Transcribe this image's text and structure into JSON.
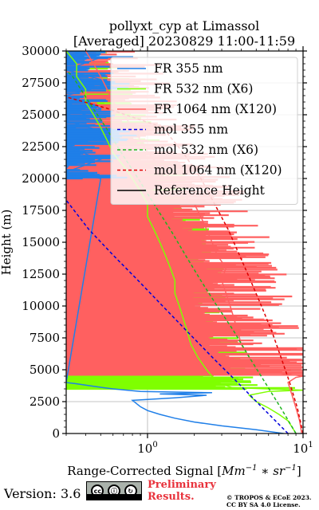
{
  "chart_data": {
    "type": "line",
    "title": "pollyxt_cyp at Limassol",
    "subtitle": "[Averaged] 20230829 11:00-11:59",
    "xlabel": "Range-Corrected Signal [Mm^{-1}*sr^{-1}]",
    "xlabel_text": "Range-Corrected Signal [",
    "xlabel_math": "Mm",
    "xlabel_close": "]",
    "ylabel": "Height (m)",
    "xscale": "log",
    "xlim": [
      0.3,
      10
    ],
    "ylim": [
      0,
      30000
    ],
    "x_ticks": [
      {
        "value": 1,
        "label": "10",
        "exp": "0"
      },
      {
        "value": 10,
        "label": "10",
        "exp": "1"
      }
    ],
    "y_ticks": [
      {
        "value": 0,
        "label": "0"
      },
      {
        "value": 2500,
        "label": "2500"
      },
      {
        "value": 5000,
        "label": "5000"
      },
      {
        "value": 7500,
        "label": "7500"
      },
      {
        "value": 10000,
        "label": "10000"
      },
      {
        "value": 12500,
        "label": "12500"
      },
      {
        "value": 15000,
        "label": "15000"
      },
      {
        "value": 17500,
        "label": "17500"
      },
      {
        "value": 20000,
        "label": "20000"
      },
      {
        "value": 22500,
        "label": "22500"
      },
      {
        "value": 25000,
        "label": "25000"
      },
      {
        "value": 27500,
        "label": "27500"
      },
      {
        "value": 30000,
        "label": "30000"
      }
    ],
    "grid": true,
    "legend_position": "upper-right",
    "series": [
      {
        "name": "FR 355 nm",
        "color": "#1f7fe8",
        "style": "solid",
        "points": [
          [
            7.5,
            0
          ],
          [
            5.0,
            300
          ],
          [
            3.0,
            600
          ],
          [
            2.0,
            900
          ],
          [
            1.5,
            1200
          ],
          [
            1.2,
            1500
          ],
          [
            1.0,
            1800
          ],
          [
            0.9,
            2100
          ],
          [
            0.8,
            2600
          ],
          [
            1.5,
            2800
          ],
          [
            2.4,
            3000
          ],
          [
            1.2,
            3100
          ],
          [
            2.6,
            3200
          ],
          [
            0.9,
            3300
          ],
          [
            0.6,
            3500
          ],
          [
            0.45,
            3700
          ],
          [
            0.35,
            3900
          ],
          [
            0.3,
            4000
          ],
          [
            0.5,
            20000
          ],
          [
            0.3,
            20500
          ],
          [
            0.5,
            21500
          ],
          [
            0.3,
            22500
          ],
          [
            0.6,
            23500
          ],
          [
            0.3,
            24500
          ],
          [
            0.5,
            25500
          ],
          [
            0.3,
            26500
          ],
          [
            0.6,
            27500
          ],
          [
            0.3,
            28500
          ],
          [
            0.5,
            29500
          ],
          [
            0.3,
            30000
          ]
        ]
      },
      {
        "name": "FR 532 nm (X6)",
        "color": "#7fff00",
        "style": "solid",
        "points": [
          [
            9.0,
            0
          ],
          [
            8.5,
            500
          ],
          [
            8.0,
            1000
          ],
          [
            7.0,
            1500
          ],
          [
            6.0,
            2000
          ],
          [
            5.0,
            2500
          ],
          [
            4.5,
            3000
          ],
          [
            6.0,
            3300
          ],
          [
            10,
            3400
          ],
          [
            3.5,
            3600
          ],
          [
            2.8,
            4000
          ],
          [
            2.4,
            5000
          ],
          [
            2.1,
            6000
          ],
          [
            1.9,
            7000
          ],
          [
            1.8,
            8000
          ],
          [
            1.7,
            9000
          ],
          [
            1.6,
            10000
          ],
          [
            1.5,
            11000
          ],
          [
            1.5,
            12000
          ],
          [
            1.4,
            13000
          ],
          [
            1.3,
            14000
          ],
          [
            1.2,
            15000
          ],
          [
            1.1,
            16000
          ],
          [
            1.0,
            17000
          ],
          [
            1.0,
            18000
          ],
          [
            0.9,
            19000
          ],
          [
            0.8,
            20000
          ],
          [
            0.7,
            21000
          ],
          [
            0.6,
            22000
          ],
          [
            0.55,
            23000
          ],
          [
            0.5,
            24000
          ],
          [
            0.45,
            25000
          ],
          [
            0.4,
            26000
          ],
          [
            0.4,
            27000
          ],
          [
            0.35,
            28000
          ],
          [
            0.35,
            29000
          ],
          [
            0.3,
            30000
          ]
        ]
      },
      {
        "name": "FR 1064 nm (X120)",
        "color": "#ff6060",
        "style": "solid",
        "points": [
          [
            9.8,
            0
          ],
          [
            9.5,
            1000
          ],
          [
            9.0,
            2000
          ],
          [
            8.5,
            3000
          ],
          [
            8.0,
            4000
          ],
          [
            9.0,
            4400
          ],
          [
            10,
            4500
          ],
          [
            5.0,
            5000
          ],
          [
            4.5,
            6000
          ],
          [
            4.0,
            7000
          ],
          [
            3.8,
            8000
          ],
          [
            3.6,
            9000
          ],
          [
            3.4,
            10000
          ],
          [
            3.2,
            11000
          ],
          [
            3.0,
            12000
          ],
          [
            3.2,
            13000
          ],
          [
            2.8,
            14000
          ],
          [
            2.6,
            15000
          ],
          [
            2.4,
            16000
          ],
          [
            2.2,
            17000
          ],
          [
            2.0,
            18000
          ],
          [
            1.6,
            19000
          ],
          [
            1.4,
            20000
          ],
          [
            1.2,
            21000
          ],
          [
            1.0,
            22000
          ],
          [
            0.9,
            23000
          ],
          [
            0.8,
            24000
          ],
          [
            0.7,
            25000
          ],
          [
            0.6,
            26000
          ],
          [
            0.55,
            27000
          ],
          [
            0.5,
            28000
          ],
          [
            0.45,
            29000
          ],
          [
            0.4,
            30000
          ]
        ]
      },
      {
        "name": "mol 355 nm",
        "color": "#0000dd",
        "style": "dashed",
        "points": [
          [
            8.0,
            0
          ],
          [
            5.5,
            2000
          ],
          [
            3.8,
            4000
          ],
          [
            2.6,
            6000
          ],
          [
            1.8,
            8000
          ],
          [
            1.25,
            10000
          ],
          [
            0.87,
            12000
          ],
          [
            0.6,
            14000
          ],
          [
            0.42,
            16000
          ],
          [
            0.3,
            18300
          ]
        ]
      },
      {
        "name": "mol 532 nm (X6)",
        "color": "#1fb41f",
        "style": "dashed",
        "points": [
          [
            9.0,
            0
          ],
          [
            7.2,
            2000
          ],
          [
            5.7,
            4000
          ],
          [
            4.5,
            6000
          ],
          [
            3.6,
            8000
          ],
          [
            2.8,
            10000
          ],
          [
            2.2,
            12000
          ],
          [
            1.75,
            14000
          ],
          [
            1.4,
            16000
          ],
          [
            1.1,
            18000
          ],
          [
            0.87,
            20000
          ],
          [
            0.68,
            22000
          ],
          [
            0.54,
            24000
          ],
          [
            0.42,
            26000
          ],
          [
            0.33,
            28000
          ],
          [
            0.3,
            28500
          ]
        ]
      },
      {
        "name": "mol 1064 nm (X120)",
        "color": "#dd0000",
        "style": "dashed",
        "points": [
          [
            10,
            0
          ],
          [
            9.2,
            2000
          ],
          [
            8.2,
            4000
          ],
          [
            7.2,
            6000
          ],
          [
            6.3,
            8000
          ],
          [
            5.4,
            10000
          ],
          [
            4.6,
            12000
          ],
          [
            3.9,
            14000
          ],
          [
            3.3,
            16000
          ],
          [
            2.7,
            18000
          ],
          [
            2.2,
            20000
          ],
          [
            1.7,
            22000
          ],
          [
            1.25,
            24000
          ],
          [
            0.55,
            25500
          ],
          [
            0.3,
            26400
          ]
        ]
      },
      {
        "name": "Reference Height",
        "color": "#000000",
        "style": "solid",
        "points": []
      }
    ]
  },
  "footer": {
    "version": "Version: 3.6",
    "cc_icons": [
      "cc",
      "by",
      "sa"
    ],
    "cc_label_by": "BY",
    "cc_label_sa": "SA",
    "preliminary_line1": "Preliminary",
    "preliminary_line2": "Results.",
    "copyright_line1": "© TROPOS & ECoE 2023.",
    "copyright_line2": "CC BY SA 4.0 License."
  }
}
